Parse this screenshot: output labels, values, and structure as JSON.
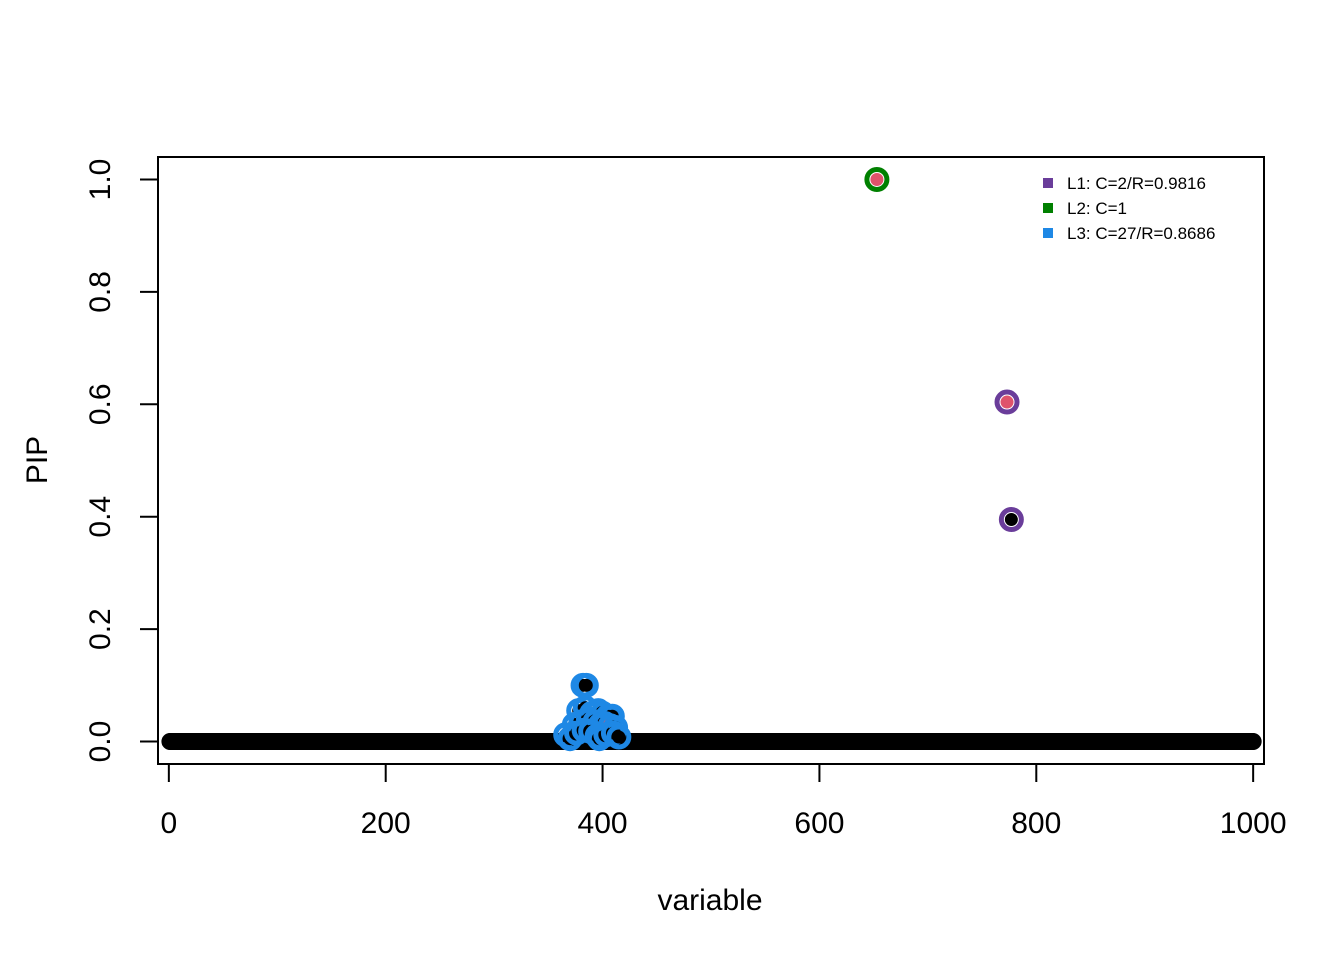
{
  "chart_data": {
    "type": "scatter",
    "title": "",
    "xlabel": "variable",
    "ylabel": "PIP",
    "xlim": [
      -10,
      1010
    ],
    "ylim": [
      -0.04,
      1.04
    ],
    "x_ticks": [
      "0",
      "200",
      "400",
      "600",
      "800",
      "1000"
    ],
    "x_tick_values": [
      0,
      200,
      400,
      600,
      800,
      1000
    ],
    "y_ticks": [
      "0.0",
      "0.2",
      "0.4",
      "0.6",
      "0.8",
      "1.0"
    ],
    "y_tick_values": [
      0,
      0.2,
      0.4,
      0.6,
      0.8,
      1.0
    ],
    "grid": false,
    "legend_position": "top-right",
    "n_variables": 1000,
    "baseline_pip": 0,
    "colors": {
      "point": "#000000",
      "true_effect": "#DF536B",
      "L1": "#6A3D9A",
      "L2": "#008000",
      "L3": "#1E88E5"
    },
    "legend": [
      {
        "label": "L1: C=2/R=0.9816",
        "color": "#6A3D9A"
      },
      {
        "label": "L2: C=1",
        "color": "#008000"
      },
      {
        "label": "L3: C=27/R=0.8686",
        "color": "#1E88E5"
      }
    ],
    "credible_set_points": [
      {
        "x": 653,
        "y": 1.0,
        "set": "L2",
        "true_effect": true
      },
      {
        "x": 773,
        "y": 0.604,
        "set": "L1",
        "true_effect": true
      },
      {
        "x": 777,
        "y": 0.395,
        "set": "L1",
        "true_effect": false
      },
      {
        "x": 382,
        "y": 0.1,
        "set": "L3",
        "true_effect": false
      },
      {
        "x": 385,
        "y": 0.1,
        "set": "L3",
        "true_effect": false
      },
      {
        "x": 378,
        "y": 0.055,
        "set": "L3",
        "true_effect": false
      },
      {
        "x": 384,
        "y": 0.06,
        "set": "L3",
        "true_effect": false
      },
      {
        "x": 390,
        "y": 0.05,
        "set": "L3",
        "true_effect": false
      },
      {
        "x": 396,
        "y": 0.055,
        "set": "L3",
        "true_effect": false
      },
      {
        "x": 400,
        "y": 0.05,
        "set": "L3",
        "true_effect": false
      },
      {
        "x": 405,
        "y": 0.045,
        "set": "L3",
        "true_effect": false
      },
      {
        "x": 409,
        "y": 0.045,
        "set": "L3",
        "true_effect": false
      },
      {
        "x": 374,
        "y": 0.03,
        "set": "L3",
        "true_effect": false
      },
      {
        "x": 380,
        "y": 0.035,
        "set": "L3",
        "true_effect": false
      },
      {
        "x": 387,
        "y": 0.04,
        "set": "L3",
        "true_effect": false
      },
      {
        "x": 393,
        "y": 0.035,
        "set": "L3",
        "true_effect": false
      },
      {
        "x": 398,
        "y": 0.03,
        "set": "L3",
        "true_effect": false
      },
      {
        "x": 402,
        "y": 0.032,
        "set": "L3",
        "true_effect": true
      },
      {
        "x": 407,
        "y": 0.028,
        "set": "L3",
        "true_effect": false
      },
      {
        "x": 412,
        "y": 0.025,
        "set": "L3",
        "true_effect": false
      },
      {
        "x": 366,
        "y": 0.012,
        "set": "L3",
        "true_effect": false
      },
      {
        "x": 370,
        "y": 0.005,
        "set": "L3",
        "true_effect": false
      },
      {
        "x": 376,
        "y": 0.015,
        "set": "L3",
        "true_effect": false
      },
      {
        "x": 383,
        "y": 0.02,
        "set": "L3",
        "true_effect": false
      },
      {
        "x": 389,
        "y": 0.018,
        "set": "L3",
        "true_effect": false
      },
      {
        "x": 395,
        "y": 0.01,
        "set": "L3",
        "true_effect": false
      },
      {
        "x": 397,
        "y": 0.005,
        "set": "L3",
        "true_effect": false
      },
      {
        "x": 403,
        "y": 0.012,
        "set": "L3",
        "true_effect": false
      },
      {
        "x": 410,
        "y": 0.015,
        "set": "L3",
        "true_effect": false
      },
      {
        "x": 415,
        "y": 0.008,
        "set": "L3",
        "true_effect": false
      }
    ]
  }
}
